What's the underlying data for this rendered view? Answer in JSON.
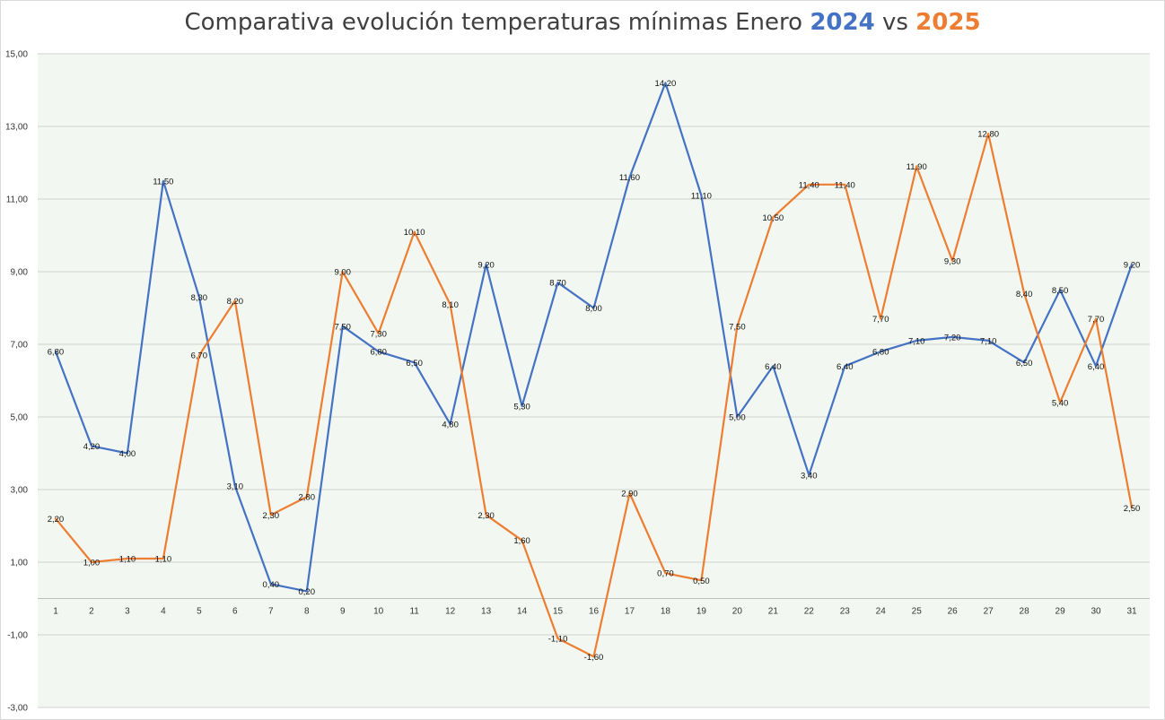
{
  "chart_data": {
    "type": "line",
    "title": {
      "prefix": "Comparativa evolución temperaturas mínimas Enero ",
      "year_a": "2024",
      "middle": " vs ",
      "year_b": "2025"
    },
    "x": [
      "1",
      "2",
      "3",
      "4",
      "5",
      "6",
      "7",
      "8",
      "9",
      "10",
      "11",
      "12",
      "13",
      "14",
      "15",
      "16",
      "17",
      "18",
      "19",
      "20",
      "21",
      "22",
      "23",
      "24",
      "25",
      "26",
      "27",
      "28",
      "29",
      "30",
      "31"
    ],
    "y_ticks": [
      "15,00",
      "13,00",
      "11,00",
      "9,00",
      "7,00",
      "5,00",
      "3,00",
      "1,00",
      "-1,00",
      "-3,00"
    ],
    "ylim": [
      -3,
      15
    ],
    "y_tick_step": 2,
    "grid": true,
    "plot_background": "#f3f7f1",
    "series": [
      {
        "name": "2024",
        "color": "#4472c4",
        "values": [
          6.8,
          4.2,
          4.0,
          11.5,
          8.3,
          3.1,
          0.4,
          0.2,
          7.5,
          6.8,
          6.5,
          4.8,
          9.2,
          5.3,
          8.7,
          8.0,
          11.6,
          14.2,
          11.1,
          5.0,
          6.4,
          3.4,
          6.4,
          6.8,
          7.1,
          7.2,
          7.1,
          6.5,
          8.5,
          6.4,
          9.2
        ],
        "labels": [
          "6,80",
          "4,20",
          "4,00",
          "11,50",
          "8,30",
          "3,10",
          "0,40",
          "0,20",
          "7,50",
          "6,80",
          "6,50",
          "4,80",
          "9,20",
          "5,30",
          "8,70",
          "8,00",
          "11,60",
          "14,20",
          "11,10",
          "5,00",
          "6,40",
          "3,40",
          "6,40",
          "6,80",
          "7,10",
          "7,20",
          "7,10",
          "6,50",
          "8,50",
          "6,40",
          "9,20"
        ]
      },
      {
        "name": "2025",
        "color": "#ed7d31",
        "values": [
          2.2,
          1.0,
          1.1,
          1.1,
          6.7,
          8.2,
          2.3,
          2.8,
          9.0,
          7.3,
          10.1,
          8.1,
          2.3,
          1.6,
          -1.1,
          -1.6,
          2.9,
          0.7,
          0.5,
          7.5,
          10.5,
          11.4,
          11.4,
          7.7,
          11.9,
          9.3,
          12.8,
          8.4,
          5.4,
          7.7,
          2.5
        ],
        "labels": [
          "2,20",
          "1,00",
          "1,10",
          "1,10",
          "6,70",
          "8,20",
          "2,30",
          "2,80",
          "9,00",
          "7,30",
          "10,10",
          "8,10",
          "2,30",
          "1,60",
          "-1,10",
          "-1,60",
          "2,90",
          "0,70",
          "0,50",
          "7,50",
          "10,50",
          "11,40",
          "11,40",
          "7,70",
          "11,90",
          "9,30",
          "12,80",
          "8,40",
          "5,40",
          "7,70",
          "2,50"
        ]
      }
    ]
  }
}
